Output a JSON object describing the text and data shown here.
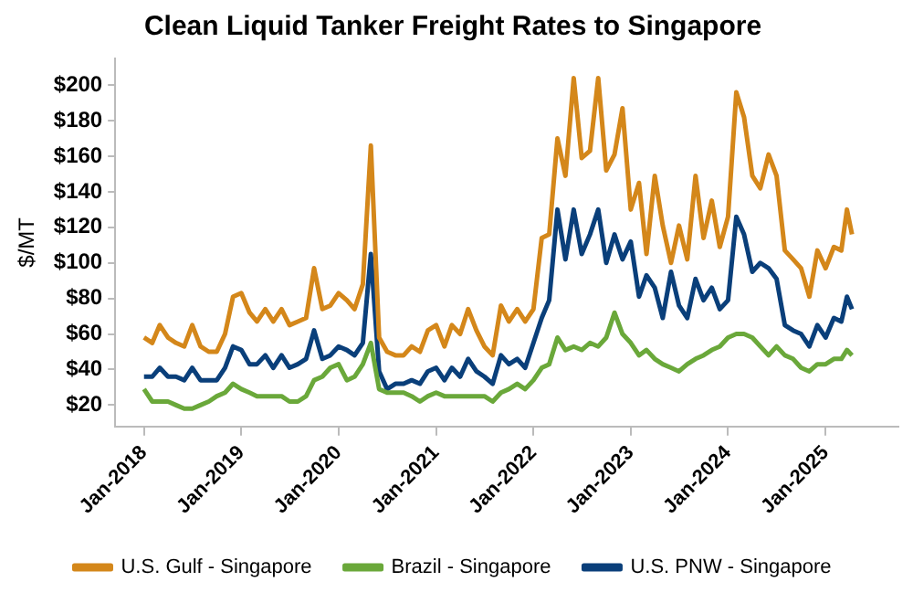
{
  "chart_data": {
    "type": "line",
    "title": "Clean Liquid Tanker Freight Rates to Singapore",
    "ylabel": "$/MT",
    "x": [
      "2018-01",
      "2018-02",
      "2018-03",
      "2018-04",
      "2018-05",
      "2018-06",
      "2018-07",
      "2018-08",
      "2018-09",
      "2018-10",
      "2018-11",
      "2018-12",
      "2019-01",
      "2019-02",
      "2019-03",
      "2019-04",
      "2019-05",
      "2019-06",
      "2019-07",
      "2019-08",
      "2019-09",
      "2019-10",
      "2019-11",
      "2019-12",
      "2020-01",
      "2020-02",
      "2020-03",
      "2020-04",
      "2020-05",
      "2020-06",
      "2020-07",
      "2020-08",
      "2020-09",
      "2020-10",
      "2020-11",
      "2020-12",
      "2021-01",
      "2021-02",
      "2021-03",
      "2021-04",
      "2021-05",
      "2021-06",
      "2021-07",
      "2021-08",
      "2021-09",
      "2021-10",
      "2021-11",
      "2021-12",
      "2022-01",
      "2022-02",
      "2022-03",
      "2022-04",
      "2022-05",
      "2022-06",
      "2022-07",
      "2022-08",
      "2022-09",
      "2022-10",
      "2022-11",
      "2022-12",
      "2023-01",
      "2023-02",
      "2023-03",
      "2023-04",
      "2023-05",
      "2023-06",
      "2023-07",
      "2023-08",
      "2023-09",
      "2023-10",
      "2023-11",
      "2023-12",
      "2024-01",
      "2024-02",
      "2024-03",
      "2024-04",
      "2024-05",
      "2024-06",
      "2024-07",
      "2024-08",
      "2024-09",
      "2024-10",
      "2024-11",
      "2024-12",
      "2025-01",
      "2025-02",
      "2025-03",
      "2025-03-22",
      "2025-04-10"
    ],
    "series": [
      {
        "name": "U.S. Gulf - Singapore",
        "color": "#d4871a",
        "values": [
          58,
          55,
          65,
          58,
          55,
          53,
          65,
          53,
          50,
          50,
          60,
          81,
          83,
          72,
          67,
          74,
          67,
          74,
          65,
          67,
          69,
          97,
          74,
          76,
          83,
          79,
          74,
          88,
          166,
          58,
          50,
          48,
          48,
          53,
          50,
          62,
          65,
          53,
          65,
          60,
          74,
          62,
          53,
          48,
          76,
          67,
          74,
          67,
          74,
          114,
          116,
          170,
          149,
          204,
          159,
          163,
          204,
          152,
          161,
          187,
          130,
          145,
          105,
          149,
          121,
          100,
          121,
          102,
          149,
          114,
          135,
          109,
          126,
          196,
          182,
          149,
          142,
          161,
          149,
          107,
          102,
          97,
          81,
          107,
          97,
          109,
          107,
          130,
          116
        ]
      },
      {
        "name": "Brazil - Singapore",
        "color": "#6aa83a",
        "values": [
          29,
          22,
          22,
          22,
          20,
          18,
          18,
          20,
          22,
          25,
          27,
          32,
          29,
          27,
          25,
          25,
          25,
          25,
          22,
          22,
          25,
          34,
          36,
          41,
          43,
          34,
          36,
          43,
          55,
          29,
          27,
          27,
          27,
          25,
          22,
          25,
          27,
          25,
          25,
          25,
          25,
          25,
          25,
          22,
          27,
          29,
          32,
          29,
          34,
          41,
          43,
          58,
          51,
          53,
          51,
          55,
          53,
          58,
          72,
          60,
          55,
          48,
          51,
          46,
          43,
          41,
          39,
          43,
          46,
          48,
          51,
          53,
          58,
          60,
          60,
          58,
          53,
          48,
          53,
          48,
          46,
          41,
          39,
          43,
          43,
          46,
          46,
          51,
          48
        ]
      },
      {
        "name": "U.S. PNW - Singapore",
        "color": "#0a3f7a",
        "values": [
          36,
          36,
          41,
          36,
          36,
          34,
          41,
          34,
          34,
          34,
          41,
          53,
          51,
          43,
          43,
          48,
          41,
          48,
          41,
          43,
          46,
          62,
          46,
          48,
          53,
          51,
          48,
          55,
          105,
          39,
          29,
          32,
          32,
          34,
          32,
          39,
          41,
          34,
          41,
          36,
          46,
          39,
          36,
          32,
          48,
          43,
          46,
          41,
          55,
          69,
          79,
          130,
          102,
          130,
          105,
          116,
          130,
          100,
          116,
          102,
          112,
          81,
          93,
          86,
          69,
          95,
          76,
          69,
          91,
          79,
          86,
          74,
          79,
          126,
          116,
          95,
          100,
          97,
          91,
          65,
          62,
          60,
          53,
          65,
          58,
          69,
          67,
          81,
          74
        ]
      }
    ],
    "xlim": [
      "2017-09-15",
      "2025-10-01"
    ],
    "xticks": [
      {
        "value": "2018-01",
        "label": "Jan-2018"
      },
      {
        "value": "2019-01",
        "label": "Jan-2019"
      },
      {
        "value": "2020-01",
        "label": "Jan-2020"
      },
      {
        "value": "2021-01",
        "label": "Jan-2021"
      },
      {
        "value": "2022-01",
        "label": "Jan-2022"
      },
      {
        "value": "2023-01",
        "label": "Jan-2023"
      },
      {
        "value": "2024-01",
        "label": "Jan-2024"
      },
      {
        "value": "2025-01",
        "label": "Jan-2025"
      }
    ],
    "ylim": [
      8,
      215
    ],
    "yticks": [
      {
        "value": 20,
        "label": "$20"
      },
      {
        "value": 40,
        "label": "$40"
      },
      {
        "value": 60,
        "label": "$60"
      },
      {
        "value": 80,
        "label": "$80"
      },
      {
        "value": 100,
        "label": "$100"
      },
      {
        "value": 120,
        "label": "$120"
      },
      {
        "value": 140,
        "label": "$140"
      },
      {
        "value": 160,
        "label": "$160"
      },
      {
        "value": 180,
        "label": "$180"
      },
      {
        "value": 200,
        "label": "$200"
      }
    ],
    "grid": false,
    "legend": "bottom",
    "marker": "none",
    "line_style": "solid"
  }
}
